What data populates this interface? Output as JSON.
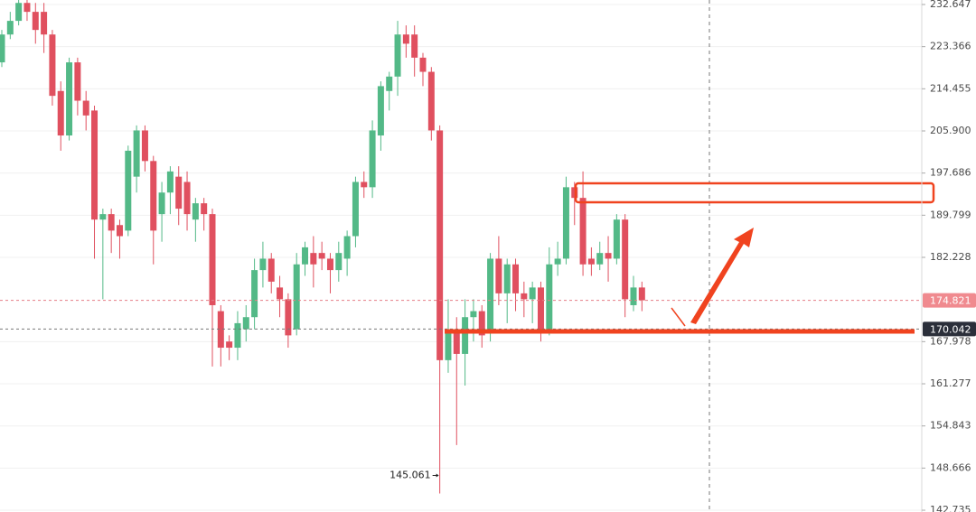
{
  "chart_data": {
    "type": "candlestick",
    "open": [
      220,
      226,
      229,
      233,
      231,
      231,
      226,
      214,
      205,
      220,
      212,
      210,
      189,
      190,
      188,
      187,
      197,
      206,
      200,
      190,
      194,
      197,
      196,
      189,
      192,
      190,
      173,
      168,
      167,
      170,
      172,
      180,
      182,
      177,
      175,
      170,
      181,
      183,
      183,
      182,
      180,
      182,
      186,
      196,
      195,
      205,
      214,
      217,
      226,
      226,
      221,
      218,
      206,
      165,
      170,
      166,
      172,
      173,
      170,
      182,
      176,
      181,
      176,
      175,
      177,
      170,
      181,
      182,
      195,
      193,
      182,
      181,
      183,
      182,
      189,
      174,
      177
    ],
    "high": [
      227,
      231,
      234,
      234,
      233,
      233,
      227,
      216,
      221,
      221,
      214,
      211,
      191,
      191,
      189,
      203,
      207,
      207,
      201,
      196,
      199,
      199,
      198,
      193,
      193,
      191,
      174,
      169,
      173,
      174,
      182,
      185,
      183,
      179,
      176,
      183,
      185,
      186,
      185,
      183,
      185,
      187,
      197,
      198,
      208,
      216,
      218,
      229,
      228,
      228,
      222,
      219,
      207,
      175,
      172,
      175,
      175,
      174,
      183,
      186,
      182,
      182,
      178,
      178,
      178,
      184,
      185,
      197,
      196,
      198,
      184,
      185,
      186,
      190,
      190,
      179,
      178
    ],
    "low": [
      219,
      225,
      228,
      229,
      224,
      222,
      211,
      202,
      204,
      209,
      206,
      182,
      175,
      183,
      182,
      186,
      194,
      198,
      181,
      185,
      190,
      188,
      187,
      185,
      187,
      164,
      164,
      165,
      165,
      168,
      170,
      177,
      176,
      172,
      167,
      169,
      179,
      177,
      180,
      176,
      178,
      179,
      184,
      193,
      193,
      202,
      210,
      213,
      221,
      217,
      215,
      204,
      145.061,
      163,
      152,
      161,
      168,
      167,
      168,
      174,
      171,
      173,
      172,
      171,
      168,
      169,
      179,
      181,
      188,
      179,
      179,
      180,
      178,
      181,
      172,
      173,
      173
    ],
    "close": [
      226,
      229,
      233,
      231,
      227,
      226,
      213,
      205,
      220,
      212,
      209,
      189,
      190,
      187,
      186,
      202,
      206,
      200,
      187,
      194,
      198,
      191,
      190,
      192,
      190,
      174,
      167,
      167,
      171,
      172,
      180,
      182,
      178,
      175,
      169,
      181,
      184,
      181,
      182,
      180,
      183,
      186,
      196,
      195,
      206,
      215,
      217,
      226,
      224,
      221,
      218,
      206,
      165,
      170,
      166,
      172,
      173,
      169,
      182,
      176,
      181,
      176,
      175,
      177,
      170,
      181,
      182,
      195,
      193,
      181,
      181,
      183,
      182,
      189,
      175,
      177,
      174.821
    ],
    "up_color": "#53b987",
    "down_color": "#e0505f",
    "log_scale": true,
    "ylim": [
      142.49,
      233.66
    ],
    "yticks": [
      232.647,
      223.366,
      214.455,
      {
        "value": 205.9,
        "label": "205.900"
      },
      197.686,
      189.799,
      182.228,
      167.978,
      161.277,
      154.843,
      148.666,
      142.735
    ],
    "price_labels": [
      {
        "value": 174.821,
        "color": "#f08a8f",
        "line": "#e57f86"
      },
      {
        "value": 170.042,
        "color": "#2b2f3a",
        "line": "#777777"
      }
    ],
    "grid": true
  }
}
